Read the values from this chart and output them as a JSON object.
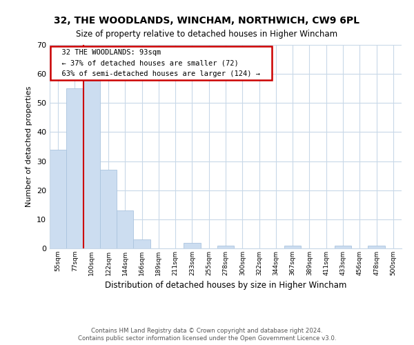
{
  "title": "32, THE WOODLANDS, WINCHAM, NORTHWICH, CW9 6PL",
  "subtitle": "Size of property relative to detached houses in Higher Wincham",
  "xlabel": "Distribution of detached houses by size in Higher Wincham",
  "ylabel": "Number of detached properties",
  "bar_labels": [
    "55sqm",
    "77sqm",
    "100sqm",
    "122sqm",
    "144sqm",
    "166sqm",
    "189sqm",
    "211sqm",
    "233sqm",
    "255sqm",
    "278sqm",
    "300sqm",
    "322sqm",
    "344sqm",
    "367sqm",
    "389sqm",
    "411sqm",
    "433sqm",
    "456sqm",
    "478sqm",
    "500sqm"
  ],
  "bar_values": [
    34,
    55,
    58,
    27,
    13,
    3,
    0,
    0,
    2,
    0,
    1,
    0,
    0,
    0,
    1,
    0,
    0,
    1,
    0,
    1,
    0
  ],
  "bar_color": "#ccddf0",
  "bar_edge_color": "#aac4de",
  "vline_x": 2.0,
  "vline_color": "#cc0000",
  "ylim": [
    0,
    70
  ],
  "yticks": [
    0,
    10,
    20,
    30,
    40,
    50,
    60,
    70
  ],
  "annotation_title": "32 THE WOODLANDS: 93sqm",
  "annotation_line1": "← 37% of detached houses are smaller (72)",
  "annotation_line2": "63% of semi-detached houses are larger (124) →",
  "annotation_box_color": "#ffffff",
  "annotation_box_edge": "#cc0000",
  "footer_line1": "Contains HM Land Registry data © Crown copyright and database right 2024.",
  "footer_line2": "Contains public sector information licensed under the Open Government Licence v3.0.",
  "background_color": "#ffffff",
  "grid_color": "#c8d8e8"
}
